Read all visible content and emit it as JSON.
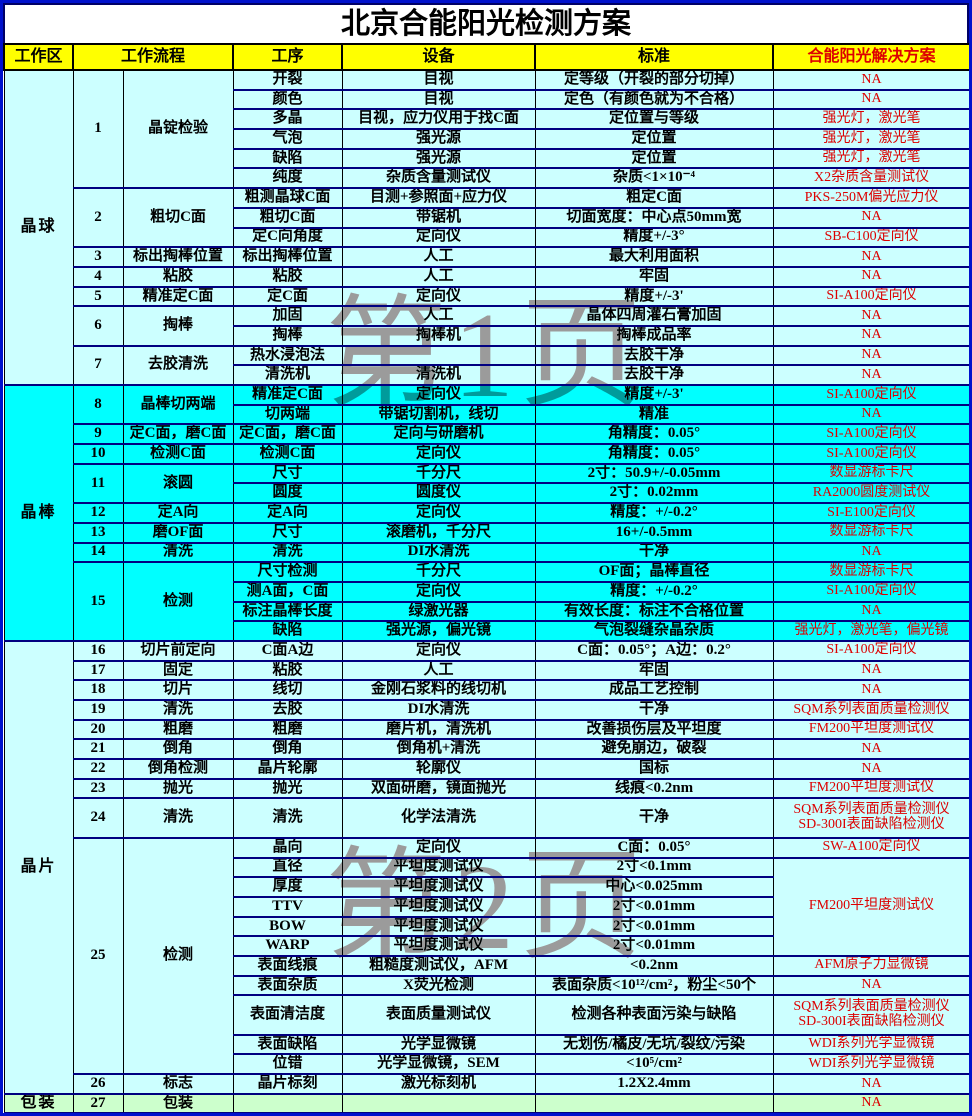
{
  "title": "北京合能阳光检测方案",
  "watermarks": {
    "page1": "第1页",
    "page2": "第2页"
  },
  "header": {
    "area": "工作区",
    "flow": "工作流程",
    "proc": "工序",
    "equip": "设备",
    "std": "标准",
    "sol": "合能阳光解决方案"
  },
  "colors": {
    "header_bg": "#ffff00",
    "section_pale_cyan": "#ccffff",
    "section_bright_cyan": "#00ffff",
    "section_green": "#ccffcc",
    "solution_red": "#dd0000",
    "outer_border_blue": "#0011cc",
    "section_border_navy": "#000080"
  },
  "sections": [
    {
      "area": "晶球",
      "bg": "#ccffff",
      "rows": [
        {
          "no": "1",
          "flow": "晶锭检验",
          "subs": [
            {
              "proc": "开裂",
              "equip": "目视",
              "std": "定等级（开裂的部分切掉）",
              "sol": "NA"
            },
            {
              "proc": "颜色",
              "equip": "目视",
              "std": "定色（有颜色就为不合格）",
              "sol": "NA"
            },
            {
              "proc": "多晶",
              "equip": "目视，应力仪用于找C面",
              "std": "定位置与等级",
              "sol": "强光灯，激光笔"
            },
            {
              "proc": "气泡",
              "equip": "强光源",
              "std": "定位置",
              "sol": "强光灯，激光笔"
            },
            {
              "proc": "缺陷",
              "equip": "强光源",
              "std": "定位置",
              "sol": "强光灯，激光笔"
            },
            {
              "proc": "纯度",
              "equip": "杂质含量测试仪",
              "std": "杂质<1×10⁻⁴",
              "sol": "X2杂质含量测试仪"
            }
          ]
        },
        {
          "no": "2",
          "flow": "粗切C面",
          "subs": [
            {
              "proc": "粗测晶球C面",
              "equip": "目测+参照面+应力仪",
              "std": "粗定C面",
              "sol": "PKS-250M偏光应力仪"
            },
            {
              "proc": "粗切C面",
              "equip": "带锯机",
              "std": "切面宽度：中心点50mm宽",
              "sol": "NA"
            },
            {
              "proc": "定C向角度",
              "equip": "定向仪",
              "std": "精度+/-3°",
              "sol": "SB-C100定向仪"
            }
          ]
        },
        {
          "no": "3",
          "flow": "标出掏棒位置",
          "subs": [
            {
              "proc": "标出掏棒位置",
              "equip": "人工",
              "std": "最大利用面积",
              "sol": "NA"
            }
          ]
        },
        {
          "no": "4",
          "flow": "粘胶",
          "subs": [
            {
              "proc": "粘胶",
              "equip": "人工",
              "std": "牢固",
              "sol": "NA"
            }
          ]
        },
        {
          "no": "5",
          "flow": "精准定C面",
          "subs": [
            {
              "proc": "定C面",
              "equip": "定向仪",
              "std": "精度+/-3'",
              "sol": "SI-A100定向仪"
            }
          ]
        },
        {
          "no": "6",
          "flow": "掏棒",
          "subs": [
            {
              "proc": "加固",
              "equip": "人工",
              "std": "晶体四周灌石膏加固",
              "sol": "NA"
            },
            {
              "proc": "掏棒",
              "equip": "掏棒机",
              "std": "掏棒成品率",
              "sol": "NA"
            }
          ]
        },
        {
          "no": "7",
          "flow": "去胶清洗",
          "subs": [
            {
              "proc": "热水浸泡法",
              "equip": "",
              "std": "去胶干净",
              "sol": "NA"
            },
            {
              "proc": "清洗机",
              "equip": "清洗机",
              "std": "去胶干净",
              "sol": "NA"
            }
          ]
        }
      ]
    },
    {
      "area": "晶棒",
      "bg": "#00ffff",
      "rows": [
        {
          "no": "8",
          "flow": "晶棒切两端",
          "subs": [
            {
              "proc": "精准定C面",
              "equip": "定向仪",
              "std": "精度+/-3'",
              "sol": "SI-A100定向仪"
            },
            {
              "proc": "切两端",
              "equip": "带锯切割机，线切",
              "std": "精准",
              "sol": "NA"
            }
          ]
        },
        {
          "no": "9",
          "flow": "定C面，磨C面",
          "subs": [
            {
              "proc": "定C面，磨C面",
              "equip": "定向与研磨机",
              "std": "角精度：0.05°",
              "sol": "SI-A100定向仪"
            }
          ]
        },
        {
          "no": "10",
          "flow": "检测C面",
          "subs": [
            {
              "proc": "检测C面",
              "equip": "定向仪",
              "std": "角精度：0.05°",
              "sol": "SI-A100定向仪"
            }
          ]
        },
        {
          "no": "11",
          "flow": "滚圆",
          "subs": [
            {
              "proc": "尺寸",
              "equip": "千分尺",
              "std": "2寸：50.9+/-0.05mm",
              "sol": "数显游标卡尺"
            },
            {
              "proc": "圆度",
              "equip": "圆度仪",
              "std": "2寸：0.02mm",
              "sol": "RA2000圆度测试仪"
            }
          ]
        },
        {
          "no": "12",
          "flow": "定A向",
          "subs": [
            {
              "proc": "定A向",
              "equip": "定向仪",
              "std": "精度：+/-0.2°",
              "sol": "SI-E100定向仪"
            }
          ]
        },
        {
          "no": "13",
          "flow": "磨OF面",
          "subs": [
            {
              "proc": "尺寸",
              "equip": "滚磨机，千分尺",
              "std": "16+/-0.5mm",
              "sol": "数显游标卡尺"
            }
          ]
        },
        {
          "no": "14",
          "flow": "清洗",
          "subs": [
            {
              "proc": "清洗",
              "equip": "DI水清洗",
              "std": "干净",
              "sol": "NA"
            }
          ]
        },
        {
          "no": "15",
          "flow": "检测",
          "subs": [
            {
              "proc": "尺寸检测",
              "equip": "千分尺",
              "std": "OF面；晶棒直径",
              "sol": "数显游标卡尺"
            },
            {
              "proc": "测A面，C面",
              "equip": "定向仪",
              "std": "精度：+/-0.2°",
              "sol": "SI-A100定向仪"
            },
            {
              "proc": "标注晶棒长度",
              "equip": "绿激光器",
              "std": "有效长度：标注不合格位置",
              "sol": "NA"
            },
            {
              "proc": "缺陷",
              "equip": "强光源，偏光镜",
              "std": "气泡裂缝杂晶杂质",
              "sol": "强光灯，激光笔，偏光镜"
            }
          ]
        }
      ]
    },
    {
      "area": "晶片",
      "bg": "#ccffff",
      "rows": [
        {
          "no": "16",
          "flow": "切片前定向",
          "subs": [
            {
              "proc": "C面A边",
              "equip": "定向仪",
              "std": "C面：0.05°；A边：0.2°",
              "sol": "SI-A100定向仪"
            }
          ]
        },
        {
          "no": "17",
          "flow": "固定",
          "subs": [
            {
              "proc": "粘胶",
              "equip": "人工",
              "std": "牢固",
              "sol": "NA"
            }
          ]
        },
        {
          "no": "18",
          "flow": "切片",
          "subs": [
            {
              "proc": "线切",
              "equip": "金刚石浆料的线切机",
              "std": "成品工艺控制",
              "sol": "NA"
            }
          ]
        },
        {
          "no": "19",
          "flow": "清洗",
          "subs": [
            {
              "proc": "去胶",
              "equip": "DI水清洗",
              "std": "干净",
              "sol": "SQM系列表面质量检测仪"
            }
          ]
        },
        {
          "no": "20",
          "flow": "粗磨",
          "subs": [
            {
              "proc": "粗磨",
              "equip": "磨片机，清洗机",
              "std": "改善损伤层及平坦度",
              "sol": "FM200平坦度测试仪"
            }
          ]
        },
        {
          "no": "21",
          "flow": "倒角",
          "subs": [
            {
              "proc": "倒角",
              "equip": "倒角机+清洗",
              "std": "避免崩边，破裂",
              "sol": "NA"
            }
          ]
        },
        {
          "no": "22",
          "flow": "倒角检测",
          "subs": [
            {
              "proc": "晶片轮廓",
              "equip": "轮廓仪",
              "std": "国标",
              "sol": "NA"
            }
          ]
        },
        {
          "no": "23",
          "flow": "抛光",
          "subs": [
            {
              "proc": "抛光",
              "equip": "双面研磨，镜面抛光",
              "std": "线痕<0.2nm",
              "sol": "FM200平坦度测试仪"
            }
          ]
        },
        {
          "no": "24",
          "flow": "清洗",
          "subs": [
            {
              "proc": "清洗",
              "equip": "化学法清洗",
              "std": "干净",
              "sol": "SQM系列表面质量检测仪\nSD-300I表面缺陷检测仪",
              "dbl": true
            }
          ]
        },
        {
          "no": "25",
          "flow": "检测",
          "subs": [
            {
              "proc": "晶向",
              "equip": "定向仪",
              "std": "C面：0.05°",
              "sol": "SW-A100定向仪"
            },
            {
              "proc": "直径",
              "equip": "平坦度测试仪",
              "std": "2寸<0.1mm",
              "sol": "FM200平坦度测试仪",
              "solspan": 5
            },
            {
              "proc": "厚度",
              "equip": "平坦度测试仪",
              "std": "中心<0.025mm"
            },
            {
              "proc": "TTV",
              "equip": "平坦度测试仪",
              "std": "2寸<0.01mm"
            },
            {
              "proc": "BOW",
              "equip": "平坦度测试仪",
              "std": "2寸<0.01mm"
            },
            {
              "proc": "WARP",
              "equip": "平坦度测试仪",
              "std": "2寸<0.01mm"
            },
            {
              "proc": "表面线痕",
              "equip": "粗糙度测试仪，AFM",
              "std": "<0.2nm",
              "sol": "AFM原子力显微镜"
            },
            {
              "proc": "表面杂质",
              "equip": "X荧光检测",
              "std": "表面杂质<10¹²/cm²，粉尘<50个",
              "sol": "NA"
            },
            {
              "proc": "表面清洁度",
              "equip": "表面质量测试仪",
              "std": "检测各种表面污染与缺陷",
              "sol": "SQM系列表面质量检测仪\nSD-300I表面缺陷检测仪",
              "dbl": true
            },
            {
              "proc": "表面缺陷",
              "equip": "光学显微镜",
              "std": "无划伤/橘皮/无坑/裂纹/污染",
              "sol": "WDI系列光学显微镜"
            },
            {
              "proc": "位错",
              "equip": "光学显微镜，SEM",
              "std": "<10⁵/cm²",
              "sol": "WDI系列光学显微镜"
            }
          ]
        },
        {
          "no": "26",
          "flow": "标志",
          "subs": [
            {
              "proc": "晶片标刻",
              "equip": "激光标刻机",
              "std": "1.2X2.4mm",
              "sol": "NA"
            }
          ]
        }
      ]
    },
    {
      "area": "包装",
      "bg": "#ccffcc",
      "rows": [
        {
          "no": "27",
          "flow": "包装",
          "subs": [
            {
              "proc": "",
              "equip": "",
              "std": "",
              "sol": "NA"
            }
          ]
        }
      ]
    }
  ]
}
